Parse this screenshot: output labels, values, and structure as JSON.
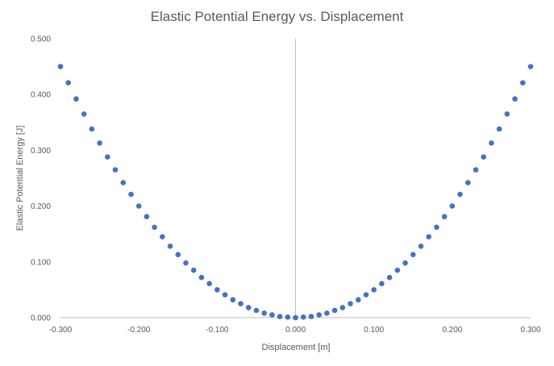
{
  "chart_data": {
    "type": "scatter",
    "title": "Elastic Potential Energy vs. Displacement",
    "xlabel": "Displacement [m]",
    "ylabel": "Elastic Potential Energy [J]",
    "xlim": [
      -0.3,
      0.3
    ],
    "ylim": [
      0,
      0.5
    ],
    "x_ticks": [
      "-0.300",
      "-0.200",
      "-0.100",
      "0.000",
      "0.100",
      "0.200",
      "0.300"
    ],
    "y_ticks": [
      "0.000",
      "0.100",
      "0.200",
      "0.300",
      "0.400",
      "0.500"
    ],
    "grid": false,
    "legend": "none",
    "marker_color": "#4472c4",
    "axis_color": "#bfbfbf",
    "series": [
      {
        "x": [
          -0.3,
          -0.29,
          -0.28,
          -0.27,
          -0.26,
          -0.25,
          -0.24,
          -0.23,
          -0.22,
          -0.21,
          -0.2,
          -0.19,
          -0.18,
          -0.17,
          -0.16,
          -0.15,
          -0.14,
          -0.13,
          -0.12,
          -0.11,
          -0.1,
          -0.09,
          -0.08,
          -0.07,
          -0.06,
          -0.05,
          -0.04,
          -0.03,
          -0.02,
          -0.01,
          0.0,
          0.01,
          0.02,
          0.03,
          0.04,
          0.05,
          0.06,
          0.07,
          0.08,
          0.09,
          0.1,
          0.11,
          0.12,
          0.13,
          0.14,
          0.15,
          0.16,
          0.17,
          0.18,
          0.19,
          0.2,
          0.21,
          0.22,
          0.23,
          0.24,
          0.25,
          0.26,
          0.27,
          0.28,
          0.29,
          0.3
        ],
        "y": [
          0.45,
          0.421,
          0.392,
          0.365,
          0.338,
          0.313,
          0.288,
          0.265,
          0.242,
          0.221,
          0.2,
          0.181,
          0.162,
          0.145,
          0.128,
          0.113,
          0.098,
          0.085,
          0.072,
          0.061,
          0.05,
          0.041,
          0.032,
          0.025,
          0.018,
          0.013,
          0.008,
          0.005,
          0.002,
          0.001,
          0.0,
          0.001,
          0.002,
          0.005,
          0.008,
          0.013,
          0.018,
          0.025,
          0.032,
          0.041,
          0.05,
          0.061,
          0.072,
          0.085,
          0.098,
          0.113,
          0.128,
          0.145,
          0.162,
          0.181,
          0.2,
          0.221,
          0.242,
          0.265,
          0.288,
          0.313,
          0.338,
          0.365,
          0.392,
          0.421,
          0.45
        ]
      }
    ]
  }
}
